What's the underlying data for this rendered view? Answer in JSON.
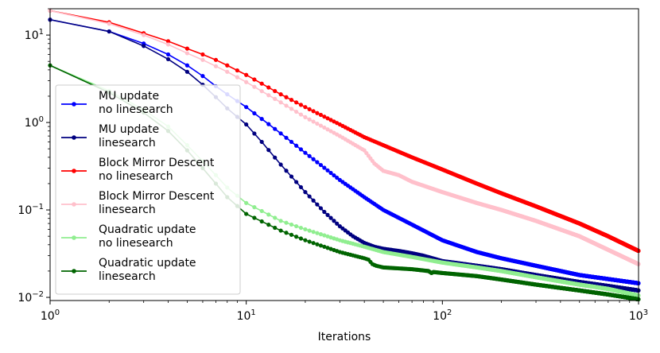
{
  "chart_data": {
    "type": "line",
    "xlabel": "Iterations",
    "ylabel": "",
    "xscale": "log",
    "yscale": "log",
    "xlim": [
      1,
      1000
    ],
    "ylim": [
      0.0092,
      20
    ],
    "x_ticks": [
      {
        "value": 1,
        "base": "10",
        "exp": "0"
      },
      {
        "value": 10,
        "base": "10",
        "exp": "1"
      },
      {
        "value": 100,
        "base": "10",
        "exp": "2"
      },
      {
        "value": 1000,
        "base": "10",
        "exp": "3"
      }
    ],
    "y_ticks": [
      {
        "value": 0.01,
        "base": "10",
        "exp": "−2"
      },
      {
        "value": 0.1,
        "base": "10",
        "exp": "−1"
      },
      {
        "value": 1,
        "base": "10",
        "exp": "0"
      },
      {
        "value": 10,
        "base": "10",
        "exp": "1"
      }
    ],
    "legend_position": "lower-left",
    "grid": false,
    "series": [
      {
        "name": "MU update\nno linesearch",
        "color": "#0000ff",
        "points": [
          [
            1,
            15
          ],
          [
            2,
            11
          ],
          [
            3,
            8
          ],
          [
            4,
            6
          ],
          [
            5,
            4.5
          ],
          [
            6,
            3.4
          ],
          [
            7,
            2.6
          ],
          [
            8,
            2.1
          ],
          [
            10,
            1.5
          ],
          [
            15,
            0.75
          ],
          [
            20,
            0.45
          ],
          [
            30,
            0.22
          ],
          [
            40,
            0.14
          ],
          [
            50,
            0.1
          ],
          [
            70,
            0.068
          ],
          [
            100,
            0.045
          ],
          [
            150,
            0.033
          ],
          [
            200,
            0.028
          ],
          [
            300,
            0.023
          ],
          [
            500,
            0.018
          ],
          [
            700,
            0.0162
          ],
          [
            1000,
            0.0145
          ]
        ]
      },
      {
        "name": "MU update\nlinesearch",
        "color": "#000080",
        "points": [
          [
            1,
            15
          ],
          [
            2,
            11
          ],
          [
            3,
            7.5
          ],
          [
            4,
            5.3
          ],
          [
            5,
            3.8
          ],
          [
            6,
            2.7
          ],
          [
            7,
            1.95
          ],
          [
            8,
            1.45
          ],
          [
            10,
            0.95
          ],
          [
            12,
            0.6
          ],
          [
            15,
            0.33
          ],
          [
            20,
            0.16
          ],
          [
            25,
            0.095
          ],
          [
            30,
            0.065
          ],
          [
            35,
            0.05
          ],
          [
            40,
            0.042
          ],
          [
            45,
            0.038
          ],
          [
            50,
            0.036
          ],
          [
            60,
            0.034
          ],
          [
            70,
            0.032
          ],
          [
            80,
            0.03
          ],
          [
            100,
            0.026
          ],
          [
            150,
            0.023
          ],
          [
            200,
            0.021
          ],
          [
            300,
            0.018
          ],
          [
            500,
            0.015
          ],
          [
            700,
            0.0135
          ],
          [
            1000,
            0.012
          ]
        ]
      },
      {
        "name": "Block Mirror Descent\nno linesearch",
        "color": "#ff0000",
        "points": [
          [
            1,
            19
          ],
          [
            2,
            14
          ],
          [
            3,
            10.5
          ],
          [
            4,
            8.5
          ],
          [
            5,
            7
          ],
          [
            6,
            6
          ],
          [
            7,
            5.2
          ],
          [
            8,
            4.5
          ],
          [
            10,
            3.5
          ],
          [
            15,
            2.1
          ],
          [
            20,
            1.5
          ],
          [
            30,
            0.95
          ],
          [
            40,
            0.68
          ],
          [
            50,
            0.55
          ],
          [
            70,
            0.4
          ],
          [
            100,
            0.29
          ],
          [
            150,
            0.2
          ],
          [
            200,
            0.155
          ],
          [
            300,
            0.11
          ],
          [
            500,
            0.07
          ],
          [
            700,
            0.05
          ],
          [
            1000,
            0.034
          ]
        ]
      },
      {
        "name": "Block Mirror Descent\nlinesearch",
        "color": "#ffc0cb",
        "points": [
          [
            1,
            19
          ],
          [
            2,
            13.5
          ],
          [
            3,
            10
          ],
          [
            4,
            7.8
          ],
          [
            5,
            6.2
          ],
          [
            6,
            5.2
          ],
          [
            7,
            4.4
          ],
          [
            8,
            3.8
          ],
          [
            10,
            2.9
          ],
          [
            15,
            1.7
          ],
          [
            20,
            1.15
          ],
          [
            30,
            0.7
          ],
          [
            40,
            0.48
          ],
          [
            45,
            0.34
          ],
          [
            50,
            0.28
          ],
          [
            60,
            0.25
          ],
          [
            70,
            0.21
          ],
          [
            100,
            0.16
          ],
          [
            150,
            0.12
          ],
          [
            200,
            0.1
          ],
          [
            300,
            0.075
          ],
          [
            500,
            0.05
          ],
          [
            700,
            0.035
          ],
          [
            1000,
            0.024
          ]
        ]
      },
      {
        "name": "Quadratic update\nno linesearch",
        "color": "#90ee90",
        "points": [
          [
            1,
            4.5
          ],
          [
            2,
            2.3
          ],
          [
            3,
            1.4
          ],
          [
            4,
            0.9
          ],
          [
            5,
            0.55
          ],
          [
            6,
            0.36
          ],
          [
            7,
            0.25
          ],
          [
            8,
            0.18
          ],
          [
            10,
            0.12
          ],
          [
            15,
            0.075
          ],
          [
            20,
            0.06
          ],
          [
            30,
            0.045
          ],
          [
            40,
            0.038
          ],
          [
            50,
            0.033
          ],
          [
            70,
            0.029
          ],
          [
            100,
            0.025
          ],
          [
            150,
            0.022
          ],
          [
            200,
            0.02
          ],
          [
            300,
            0.017
          ],
          [
            500,
            0.014
          ],
          [
            700,
            0.0125
          ],
          [
            1000,
            0.0105
          ]
        ]
      },
      {
        "name": "Quadratic update\nlinesearch",
        "color": "#006400",
        "points": [
          [
            1,
            4.5
          ],
          [
            2,
            2.2
          ],
          [
            3,
            1.3
          ],
          [
            4,
            0.8
          ],
          [
            5,
            0.48
          ],
          [
            6,
            0.3
          ],
          [
            7,
            0.2
          ],
          [
            8,
            0.14
          ],
          [
            10,
            0.09
          ],
          [
            15,
            0.058
          ],
          [
            20,
            0.045
          ],
          [
            30,
            0.033
          ],
          [
            40,
            0.028
          ],
          [
            42,
            0.027
          ],
          [
            44,
            0.024
          ],
          [
            46,
            0.023
          ],
          [
            50,
            0.022
          ],
          [
            70,
            0.021
          ],
          [
            85,
            0.02
          ],
          [
            88,
            0.019
          ],
          [
            90,
            0.0195
          ],
          [
            100,
            0.019
          ],
          [
            150,
            0.0175
          ],
          [
            200,
            0.016
          ],
          [
            300,
            0.014
          ],
          [
            500,
            0.012
          ],
          [
            700,
            0.0108
          ],
          [
            1000,
            0.0095
          ]
        ]
      }
    ]
  }
}
